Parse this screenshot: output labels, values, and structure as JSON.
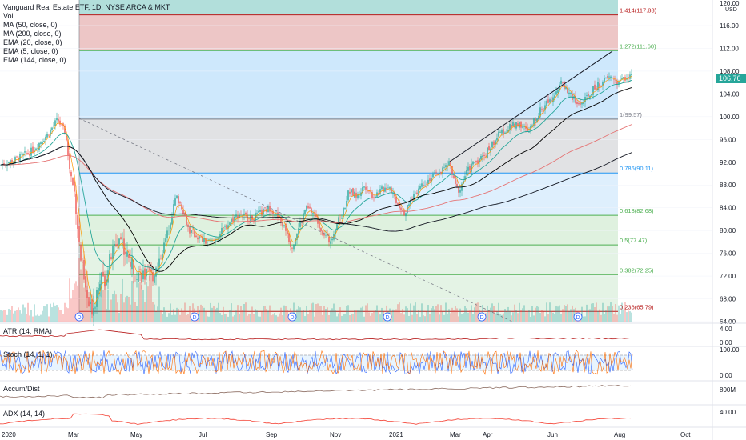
{
  "header": {
    "title": "Vanguard Real Estate ETF, 1D, NYSE ARCA & MKT",
    "indicators": [
      "Vol",
      "MA (50, close, 0)",
      "MA (200, close, 0)",
      "EMA (20, close, 0)",
      "EMA (5, close, 0)",
      "EMA (144, close, 0)"
    ]
  },
  "price_axis": {
    "currency": "USD",
    "last_price": "106.76",
    "top_label": "120.00"
  },
  "panes": {
    "atr": {
      "label": "ATR (14, RMA)",
      "ticks": [
        "4.00",
        "0.00"
      ]
    },
    "stoch": {
      "label": "Stoch (14, 1, 1)",
      "ticks": [
        "100.00",
        "0.00"
      ]
    },
    "accum": {
      "label": "Accum/Dist",
      "ticks": [
        "800M"
      ]
    },
    "adx": {
      "label": "ADX (14, 14)",
      "ticks": [
        "40.00"
      ]
    }
  },
  "chart_data": {
    "type": "candlestick",
    "y_ticks": [
      64,
      68,
      72,
      76,
      80,
      84,
      88,
      92,
      96,
      100,
      104,
      108,
      112,
      116
    ],
    "y_range": [
      63,
      120
    ],
    "x_ticks": [
      "2020",
      "Mar",
      "May",
      "Jul",
      "Sep",
      "Nov",
      "2021",
      "Mar",
      "Apr",
      "Jun",
      "Aug",
      "Oct"
    ],
    "fib_levels": [
      {
        "label": "1.414(117.88)",
        "value": 117.88,
        "color": "#b71c1c"
      },
      {
        "label": "1.272(111.60)",
        "value": 111.6,
        "color": "#4caf50"
      },
      {
        "label": "1(99.57)",
        "value": 99.57,
        "color": "#787b86"
      },
      {
        "label": "0.786(90.11)",
        "value": 90.11,
        "color": "#2196f3"
      },
      {
        "label": "0.618(82.68)",
        "value": 82.68,
        "color": "#4caf50"
      },
      {
        "label": "0.5(77.47)",
        "value": 77.47,
        "color": "#4caf50"
      },
      {
        "label": "0.382(72.25)",
        "value": 72.25,
        "color": "#4caf50"
      },
      {
        "label": "0.236(65.79)",
        "value": 65.79,
        "color": "#b71c1c"
      }
    ],
    "price_path": [
      [
        0,
        91.5
      ],
      [
        20,
        92.5
      ],
      [
        40,
        94
      ],
      [
        60,
        97
      ],
      [
        72,
        99.5
      ],
      [
        82,
        97
      ],
      [
        88,
        90
      ],
      [
        94,
        86
      ],
      [
        100,
        76
      ],
      [
        106,
        70
      ],
      [
        112,
        66
      ],
      [
        118,
        67
      ],
      [
        124,
        72
      ],
      [
        130,
        71
      ],
      [
        140,
        76
      ],
      [
        150,
        79
      ],
      [
        160,
        75
      ],
      [
        170,
        73
      ],
      [
        180,
        72
      ],
      [
        190,
        72
      ],
      [
        200,
        75
      ],
      [
        210,
        80
      ],
      [
        220,
        86
      ],
      [
        228,
        84
      ],
      [
        236,
        80
      ],
      [
        246,
        79
      ],
      [
        256,
        78
      ],
      [
        266,
        78
      ],
      [
        278,
        80
      ],
      [
        290,
        82
      ],
      [
        300,
        83
      ],
      [
        312,
        82
      ],
      [
        325,
        83
      ],
      [
        338,
        84
      ],
      [
        348,
        82
      ],
      [
        358,
        80
      ],
      [
        364,
        77
      ],
      [
        372,
        80
      ],
      [
        382,
        84
      ],
      [
        392,
        83
      ],
      [
        402,
        80
      ],
      [
        412,
        78
      ],
      [
        420,
        81
      ],
      [
        428,
        83
      ],
      [
        436,
        87
      ],
      [
        446,
        86
      ],
      [
        456,
        88
      ],
      [
        466,
        86
      ],
      [
        476,
        87
      ],
      [
        486,
        88
      ],
      [
        496,
        85
      ],
      [
        506,
        83
      ],
      [
        516,
        86
      ],
      [
        526,
        88
      ],
      [
        536,
        89
      ],
      [
        546,
        90
      ],
      [
        556,
        91
      ],
      [
        562,
        92
      ],
      [
        568,
        88
      ],
      [
        574,
        87
      ],
      [
        582,
        90
      ],
      [
        592,
        92
      ],
      [
        604,
        93
      ],
      [
        614,
        95
      ],
      [
        624,
        97
      ],
      [
        636,
        98
      ],
      [
        648,
        99
      ],
      [
        660,
        97
      ],
      [
        670,
        100
      ],
      [
        680,
        102
      ],
      [
        692,
        104
      ],
      [
        702,
        106
      ],
      [
        712,
        104
      ],
      [
        722,
        102
      ],
      [
        732,
        103
      ],
      [
        742,
        105
      ],
      [
        752,
        106
      ],
      [
        762,
        107
      ],
      [
        772,
        106
      ],
      [
        782,
        107
      ],
      [
        790,
        107
      ]
    ]
  }
}
